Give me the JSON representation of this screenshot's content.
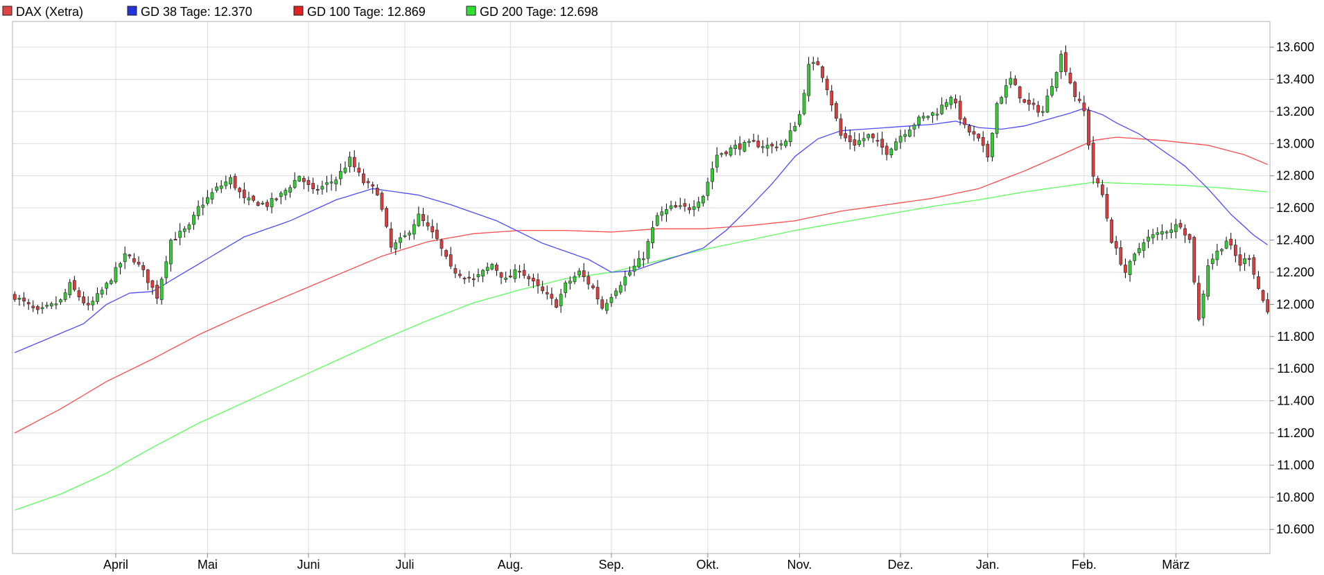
{
  "chart_data": {
    "type": "candlestick",
    "title": "",
    "xlabel": "",
    "ylabel": "",
    "ylim": [
      10450,
      13760
    ],
    "y_ticks": [
      10600,
      10800,
      11000,
      11200,
      11400,
      11600,
      11800,
      12000,
      12200,
      12400,
      12600,
      12800,
      13000,
      13200,
      13400,
      13600
    ],
    "y_tick_labels": [
      "10.600",
      "10.800",
      "11.000",
      "11.200",
      "11.400",
      "11.600",
      "11.800",
      "12.000",
      "12.200",
      "12.400",
      "12.600",
      "12.800",
      "13.000",
      "13.200",
      "13.400",
      "13.600"
    ],
    "x_months": [
      {
        "label": "April",
        "day": 22
      },
      {
        "label": "Mai",
        "day": 42
      },
      {
        "label": "Juni",
        "day": 64
      },
      {
        "label": "Juli",
        "day": 85
      },
      {
        "label": "Aug.",
        "day": 108
      },
      {
        "label": "Sep.",
        "day": 130
      },
      {
        "label": "Okt.",
        "day": 151
      },
      {
        "label": "Nov.",
        "day": 171
      },
      {
        "label": "Dez.",
        "day": 193
      },
      {
        "label": "Jan.",
        "day": 212
      },
      {
        "label": "Feb.",
        "day": 233
      },
      {
        "label": "März",
        "day": 253
      }
    ],
    "grid": true,
    "legend_position": "top-left",
    "colors": {
      "up": "#33cc33",
      "down": "#e03c3c",
      "wick": "#000000",
      "gd38": "#4b4bff",
      "gd100": "#ff4b4b",
      "gd200": "#5cff5c"
    },
    "legend": [
      {
        "label": "DAX (Xetra)",
        "color": "#e04444"
      },
      {
        "label": "GD 38 Tage: 12.370",
        "color": "#2233dd"
      },
      {
        "label": "GD 100 Tage: 12.869",
        "color": "#e02222"
      },
      {
        "label": "GD 200 Tage: 12.698",
        "color": "#33dd33"
      }
    ],
    "close_keyframes": [
      [
        0,
        12050
      ],
      [
        5,
        11950
      ],
      [
        10,
        12020
      ],
      [
        12,
        12120
      ],
      [
        16,
        11980
      ],
      [
        20,
        12120
      ],
      [
        24,
        12300
      ],
      [
        26,
        12280
      ],
      [
        28,
        12200
      ],
      [
        31,
        12050
      ],
      [
        34,
        12400
      ],
      [
        38,
        12480
      ],
      [
        40,
        12600
      ],
      [
        44,
        12720
      ],
      [
        47,
        12780
      ],
      [
        50,
        12650
      ],
      [
        55,
        12620
      ],
      [
        58,
        12680
      ],
      [
        62,
        12800
      ],
      [
        65,
        12700
      ],
      [
        70,
        12780
      ],
      [
        73,
        12900
      ],
      [
        76,
        12760
      ],
      [
        79,
        12700
      ],
      [
        82,
        12350
      ],
      [
        85,
        12420
      ],
      [
        88,
        12550
      ],
      [
        92,
        12400
      ],
      [
        95,
        12220
      ],
      [
        100,
        12150
      ],
      [
        104,
        12250
      ],
      [
        107,
        12150
      ],
      [
        110,
        12220
      ],
      [
        113,
        12130
      ],
      [
        116,
        12050
      ],
      [
        118,
        12000
      ],
      [
        120,
        12120
      ],
      [
        123,
        12200
      ],
      [
        126,
        12100
      ],
      [
        128,
        11980
      ],
      [
        131,
        12100
      ],
      [
        134,
        12200
      ],
      [
        137,
        12300
      ],
      [
        140,
        12550
      ],
      [
        143,
        12600
      ],
      [
        147,
        12600
      ],
      [
        150,
        12680
      ],
      [
        153,
        12930
      ],
      [
        157,
        12980
      ],
      [
        161,
        13000
      ],
      [
        165,
        12980
      ],
      [
        168,
        13010
      ],
      [
        171,
        13180
      ],
      [
        173,
        13480
      ],
      [
        175,
        13500
      ],
      [
        177,
        13350
      ],
      [
        180,
        13050
      ],
      [
        183,
        13000
      ],
      [
        186,
        13050
      ],
      [
        190,
        12950
      ],
      [
        193,
        13050
      ],
      [
        197,
        13150
      ],
      [
        201,
        13200
      ],
      [
        204,
        13300
      ],
      [
        207,
        13100
      ],
      [
        210,
        13020
      ],
      [
        212,
        12920
      ],
      [
        214,
        13250
      ],
      [
        217,
        13400
      ],
      [
        220,
        13250
      ],
      [
        224,
        13200
      ],
      [
        228,
        13550
      ],
      [
        231,
        13300
      ],
      [
        233,
        13200
      ],
      [
        235,
        12800
      ],
      [
        237,
        12680
      ],
      [
        239,
        12400
      ],
      [
        242,
        12200
      ],
      [
        246,
        12400
      ],
      [
        250,
        12450
      ],
      [
        254,
        12500
      ],
      [
        256,
        12400
      ],
      [
        258,
        11900
      ],
      [
        260,
        12250
      ],
      [
        264,
        12400
      ],
      [
        267,
        12250
      ],
      [
        269,
        12300
      ],
      [
        271,
        12100
      ],
      [
        273,
        11950
      ]
    ],
    "gd38_keyframes": [
      [
        0,
        11700
      ],
      [
        10,
        11820
      ],
      [
        15,
        11880
      ],
      [
        20,
        12000
      ],
      [
        25,
        12070
      ],
      [
        30,
        12080
      ],
      [
        40,
        12250
      ],
      [
        50,
        12420
      ],
      [
        60,
        12520
      ],
      [
        70,
        12650
      ],
      [
        78,
        12720
      ],
      [
        88,
        12680
      ],
      [
        95,
        12620
      ],
      [
        105,
        12520
      ],
      [
        115,
        12380
      ],
      [
        125,
        12280
      ],
      [
        130,
        12200
      ],
      [
        135,
        12210
      ],
      [
        140,
        12260
      ],
      [
        150,
        12350
      ],
      [
        155,
        12460
      ],
      [
        160,
        12600
      ],
      [
        165,
        12750
      ],
      [
        170,
        12920
      ],
      [
        175,
        13030
      ],
      [
        180,
        13080
      ],
      [
        190,
        13100
      ],
      [
        200,
        13120
      ],
      [
        205,
        13140
      ],
      [
        210,
        13100
      ],
      [
        215,
        13090
      ],
      [
        220,
        13110
      ],
      [
        225,
        13150
      ],
      [
        230,
        13190
      ],
      [
        233,
        13220
      ],
      [
        237,
        13180
      ],
      [
        240,
        13130
      ],
      [
        245,
        13060
      ],
      [
        250,
        12960
      ],
      [
        255,
        12860
      ],
      [
        260,
        12720
      ],
      [
        265,
        12560
      ],
      [
        270,
        12430
      ],
      [
        273,
        12370
      ]
    ],
    "gd100_keyframes": [
      [
        0,
        11200
      ],
      [
        10,
        11350
      ],
      [
        20,
        11520
      ],
      [
        30,
        11660
      ],
      [
        40,
        11810
      ],
      [
        50,
        11940
      ],
      [
        60,
        12060
      ],
      [
        70,
        12180
      ],
      [
        80,
        12300
      ],
      [
        90,
        12390
      ],
      [
        100,
        12440
      ],
      [
        110,
        12460
      ],
      [
        120,
        12460
      ],
      [
        130,
        12450
      ],
      [
        140,
        12470
      ],
      [
        150,
        12470
      ],
      [
        160,
        12490
      ],
      [
        170,
        12520
      ],
      [
        180,
        12580
      ],
      [
        190,
        12620
      ],
      [
        200,
        12660
      ],
      [
        210,
        12720
      ],
      [
        220,
        12830
      ],
      [
        228,
        12930
      ],
      [
        235,
        13020
      ],
      [
        240,
        13040
      ],
      [
        250,
        13020
      ],
      [
        260,
        12990
      ],
      [
        268,
        12930
      ],
      [
        273,
        12870
      ]
    ],
    "gd200_keyframes": [
      [
        0,
        10720
      ],
      [
        10,
        10820
      ],
      [
        20,
        10950
      ],
      [
        30,
        11110
      ],
      [
        40,
        11260
      ],
      [
        50,
        11390
      ],
      [
        60,
        11520
      ],
      [
        70,
        11650
      ],
      [
        80,
        11780
      ],
      [
        90,
        11900
      ],
      [
        100,
        12010
      ],
      [
        110,
        12090
      ],
      [
        120,
        12160
      ],
      [
        130,
        12200
      ],
      [
        140,
        12270
      ],
      [
        150,
        12340
      ],
      [
        160,
        12400
      ],
      [
        170,
        12460
      ],
      [
        180,
        12510
      ],
      [
        190,
        12560
      ],
      [
        200,
        12610
      ],
      [
        210,
        12650
      ],
      [
        220,
        12700
      ],
      [
        230,
        12740
      ],
      [
        235,
        12760
      ],
      [
        245,
        12750
      ],
      [
        255,
        12740
      ],
      [
        265,
        12720
      ],
      [
        273,
        12700
      ]
    ]
  }
}
